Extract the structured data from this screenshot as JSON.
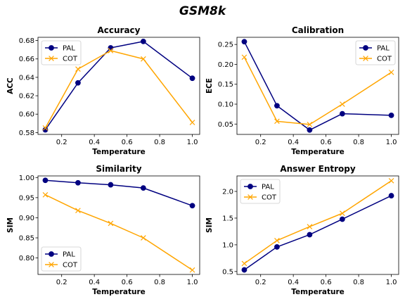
{
  "figure": {
    "title": "GSM8k"
  },
  "colors": {
    "PAL": "#000080",
    "COT": "#ffa500"
  },
  "chart_data": [
    {
      "type": "line",
      "title": "Accuracy",
      "xlabel": "Temperature",
      "ylabel": "ACC",
      "x": [
        0.1,
        0.3,
        0.5,
        0.7,
        1.0
      ],
      "xlim": [
        0.055,
        1.045
      ],
      "ylim": [
        0.578,
        0.6835
      ],
      "xticks": [
        0.2,
        0.4,
        0.6,
        0.8,
        1.0
      ],
      "xtick_labels": [
        "0.2",
        "0.4",
        "0.6",
        "0.8",
        "1.0"
      ],
      "yticks": [
        0.58,
        0.6,
        0.62,
        0.64,
        0.66,
        0.68
      ],
      "ytick_labels": [
        "0.58",
        "0.60",
        "0.62",
        "0.64",
        "0.66",
        "0.68"
      ],
      "legend": "upper-left",
      "series": [
        {
          "name": "PAL",
          "marker": "circle",
          "values": [
            0.583,
            0.634,
            0.672,
            0.679,
            0.639
          ]
        },
        {
          "name": "COT",
          "marker": "x",
          "values": [
            0.585,
            0.649,
            0.669,
            0.66,
            0.591
          ]
        }
      ]
    },
    {
      "type": "line",
      "title": "Calibration",
      "xlabel": "Temperature",
      "ylabel": "ECE",
      "x": [
        0.1,
        0.3,
        0.5,
        0.7,
        1.0
      ],
      "xlim": [
        0.055,
        1.045
      ],
      "ylim": [
        0.024,
        0.268
      ],
      "xticks": [
        0.2,
        0.4,
        0.6,
        0.8,
        1.0
      ],
      "xtick_labels": [
        "0.2",
        "0.4",
        "0.6",
        "0.8",
        "1.0"
      ],
      "yticks": [
        0.05,
        0.1,
        0.15,
        0.2,
        0.25
      ],
      "ytick_labels": [
        "0.05",
        "0.10",
        "0.15",
        "0.20",
        "0.25"
      ],
      "legend": "upper-right",
      "series": [
        {
          "name": "PAL",
          "marker": "circle",
          "values": [
            0.257,
            0.096,
            0.035,
            0.076,
            0.072
          ]
        },
        {
          "name": "COT",
          "marker": "x",
          "values": [
            0.218,
            0.057,
            0.049,
            0.1,
            0.18
          ]
        }
      ]
    },
    {
      "type": "line",
      "title": "Similarity",
      "xlabel": "Temperature",
      "ylabel": "SIM",
      "x": [
        0.1,
        0.3,
        0.5,
        0.7,
        1.0
      ],
      "xlim": [
        0.055,
        1.045
      ],
      "ylim": [
        0.759,
        1.004
      ],
      "xticks": [
        0.2,
        0.4,
        0.6,
        0.8,
        1.0
      ],
      "xtick_labels": [
        "0.2",
        "0.4",
        "0.6",
        "0.8",
        "1.0"
      ],
      "yticks": [
        0.8,
        0.85,
        0.9,
        0.95,
        1.0
      ],
      "ytick_labels": [
        "0.80",
        "0.85",
        "0.90",
        "0.95",
        "1.00"
      ],
      "legend": "lower-left",
      "series": [
        {
          "name": "PAL",
          "marker": "circle",
          "values": [
            0.993,
            0.987,
            0.982,
            0.974,
            0.93
          ]
        },
        {
          "name": "COT",
          "marker": "x",
          "values": [
            0.957,
            0.918,
            0.886,
            0.85,
            0.77
          ]
        }
      ]
    },
    {
      "type": "line",
      "title": "Answer Entropy",
      "xlabel": "Temperature",
      "ylabel": "SIM",
      "x": [
        0.1,
        0.3,
        0.5,
        0.7,
        1.0
      ],
      "xlim": [
        0.055,
        1.045
      ],
      "ylim": [
        0.445,
        2.29
      ],
      "xticks": [
        0.2,
        0.4,
        0.6,
        0.8,
        1.0
      ],
      "xtick_labels": [
        "0.2",
        "0.4",
        "0.6",
        "0.8",
        "1.0"
      ],
      "yticks": [
        0.5,
        1.0,
        1.5,
        2.0
      ],
      "ytick_labels": [
        "0.5",
        "1.0",
        "1.5",
        "2.0"
      ],
      "legend": "upper-left",
      "series": [
        {
          "name": "PAL",
          "marker": "circle",
          "values": [
            0.53,
            0.96,
            1.19,
            1.48,
            1.92
          ]
        },
        {
          "name": "COT",
          "marker": "x",
          "values": [
            0.65,
            1.08,
            1.34,
            1.59,
            2.2
          ]
        }
      ]
    }
  ]
}
